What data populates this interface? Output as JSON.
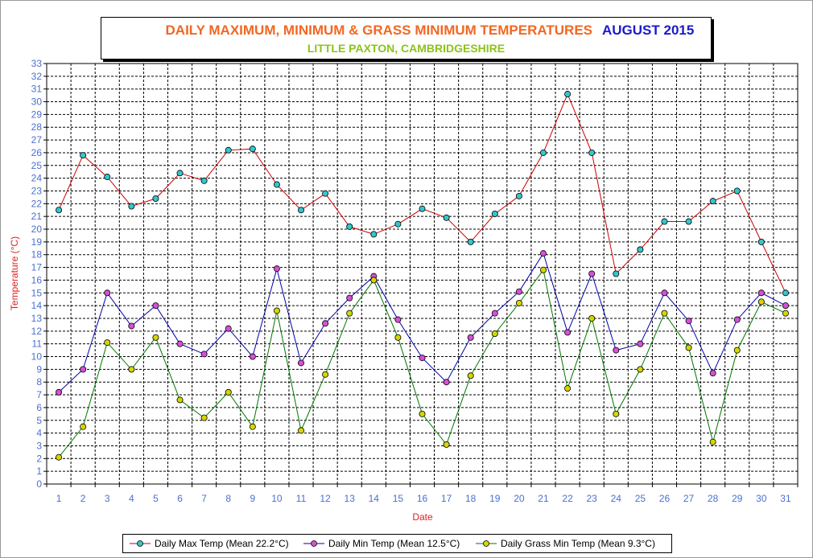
{
  "title": {
    "main": "DAILY MAXIMUM, MINIMUM & GRASS MINIMUM TEMPERATURES",
    "month": "AUGUST 2015",
    "location": "LITTLE PAXTON, CAMBRIDGESHIRE"
  },
  "colors": {
    "title_main": "#f26722",
    "title_month": "#1a1acc",
    "title_sub": "#8cc21a",
    "axis_text": "#4a6fd0",
    "axis_title": "#e02020",
    "grid": "#000000"
  },
  "chart_data": {
    "type": "line",
    "title": "DAILY MAXIMUM, MINIMUM & GRASS MINIMUM TEMPERATURES",
    "subtitle": "LITTLE PAXTON, CAMBRIDGESHIRE",
    "xlabel": "Date",
    "ylabel": "Temperature (°C)",
    "ylim": [
      0,
      33
    ],
    "ytick_step": 1,
    "grid": true,
    "legend_position": "bottom",
    "x": [
      1,
      2,
      3,
      4,
      5,
      6,
      7,
      8,
      9,
      10,
      11,
      12,
      13,
      14,
      15,
      16,
      17,
      18,
      19,
      20,
      21,
      22,
      23,
      24,
      25,
      26,
      27,
      28,
      29,
      30,
      31
    ],
    "series": [
      {
        "name": "Daily Max Temp (Mean 22.2°C)",
        "line_color": "#cc0000",
        "marker_color": "#33c6cc",
        "values": [
          21.5,
          25.8,
          24.1,
          21.8,
          22.4,
          24.4,
          23.8,
          26.2,
          26.3,
          23.5,
          21.5,
          22.8,
          20.2,
          19.6,
          20.4,
          21.6,
          20.9,
          19.0,
          21.2,
          22.6,
          26.0,
          30.6,
          26.0,
          16.5,
          18.4,
          20.6,
          20.6,
          22.2,
          23.0,
          19.0,
          15.0
        ]
      },
      {
        "name": "Daily Min Temp (Mean 12.5°C)",
        "line_color": "#0000aa",
        "marker_color": "#d84fd8",
        "values": [
          7.2,
          9.0,
          15.0,
          12.4,
          14.0,
          11.0,
          10.2,
          12.2,
          10.0,
          16.9,
          9.5,
          12.6,
          14.6,
          16.3,
          12.9,
          9.9,
          8.0,
          11.5,
          13.4,
          15.1,
          18.1,
          11.9,
          16.5,
          10.5,
          11.0,
          15.0,
          12.8,
          8.7,
          12.9,
          15.0,
          14.0
        ]
      },
      {
        "name": "Daily Grass Min Temp (Mean 9.3°C)",
        "line_color": "#007700",
        "marker_color": "#d6d600",
        "values": [
          2.1,
          4.5,
          11.1,
          9.0,
          11.5,
          6.6,
          5.2,
          7.2,
          4.5,
          13.6,
          4.2,
          8.6,
          13.4,
          16.0,
          11.5,
          5.5,
          3.1,
          8.5,
          11.8,
          14.2,
          16.8,
          7.5,
          13.0,
          5.5,
          9.0,
          13.4,
          10.7,
          3.3,
          10.5,
          14.3,
          13.4
        ]
      }
    ]
  }
}
